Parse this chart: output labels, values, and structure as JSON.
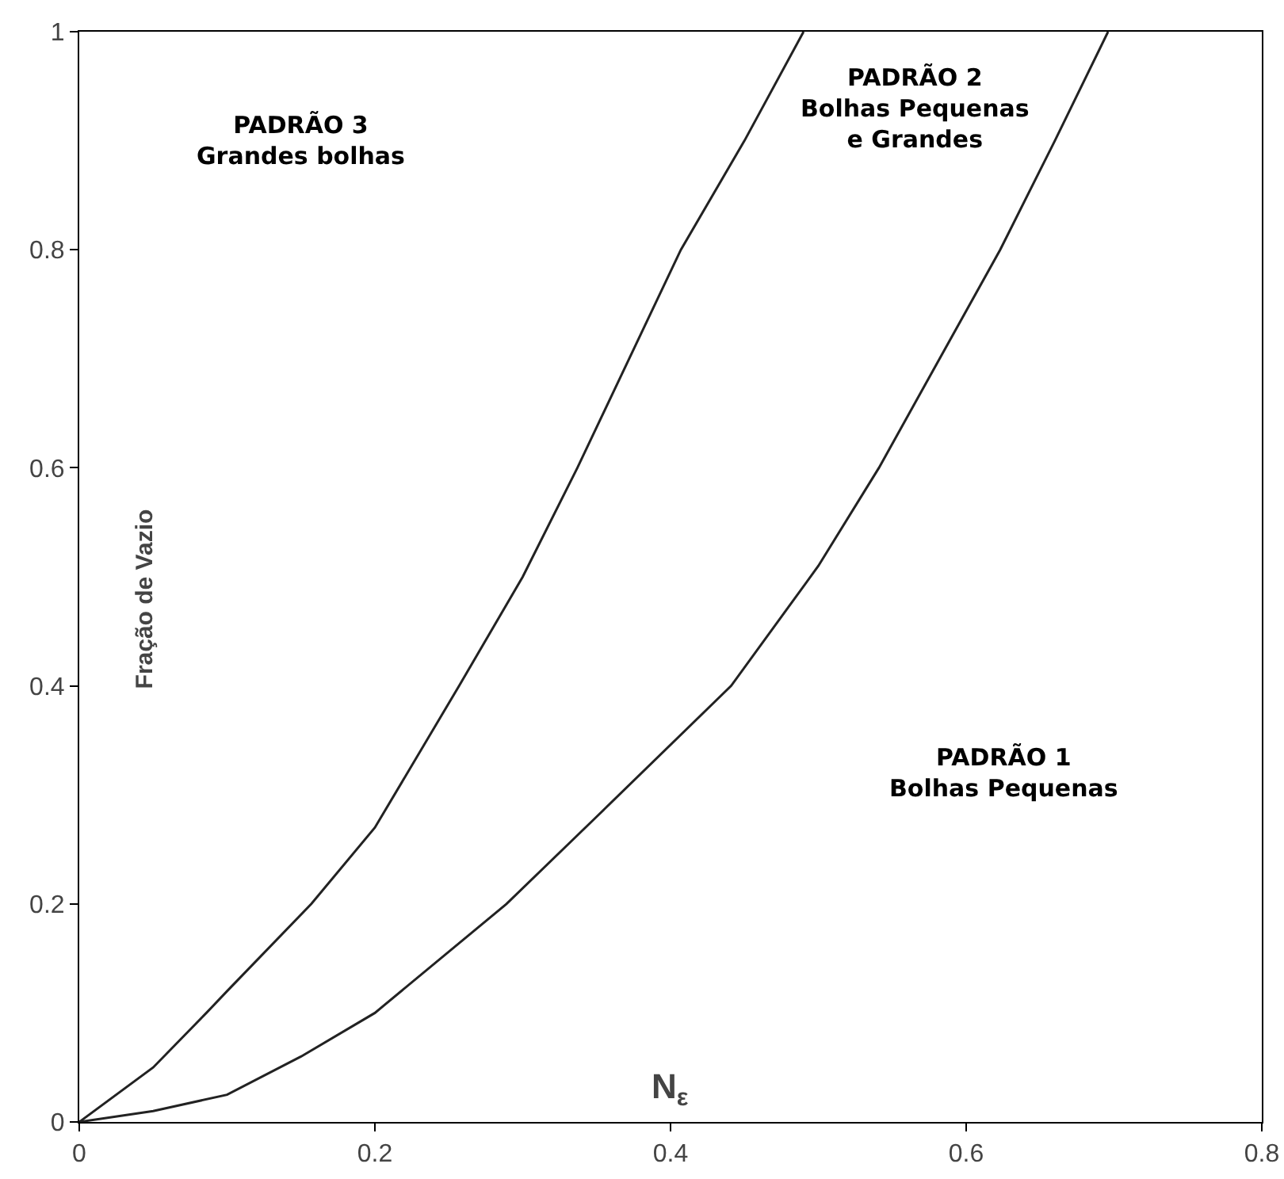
{
  "chart_data": {
    "type": "line",
    "xlabel": "N$_{ε}$",
    "ylabel": "Fração de Vazio",
    "series": [
      {
        "color": "#222222",
        "x": [
          0,
          0.05,
          0.086,
          0.1,
          0.157,
          0.2,
          0.257,
          0.3,
          0.337,
          0.407,
          0.45,
          0.49
        ],
        "values": [
          0,
          0.05,
          0.1,
          0.12,
          0.2,
          0.27,
          0.4,
          0.5,
          0.6,
          0.8,
          0.9,
          1
        ]
      },
      {
        "color": "#222222",
        "x": [
          0,
          0.05,
          0.1,
          0.15,
          0.2,
          0.289,
          0.35,
          0.441,
          0.5,
          0.541,
          0.623,
          0.66,
          0.696
        ],
        "values": [
          0,
          0.01,
          0.025,
          0.06,
          0.1,
          0.2,
          0.28,
          0.4,
          0.51,
          0.6,
          0.8,
          0.9,
          1
        ]
      }
    ],
    "annotations": [
      "PADRÃO 3\nGrandes bolhas",
      "PADRÃO 2\nBolhas Pequenas\ne Grandes",
      "PADRÃO 1\nBolhas Pequenas"
    ],
    "xlim": [
      0,
      0.8
    ],
    "ylim": [
      0,
      1
    ],
    "xticks": [
      0,
      0.2,
      0.4,
      0.6,
      0.8
    ],
    "yticks": [
      0,
      0.2,
      0.4,
      0.6,
      0.8,
      1
    ],
    "grid": false,
    "line_style": "solid",
    "marker": "none"
  }
}
